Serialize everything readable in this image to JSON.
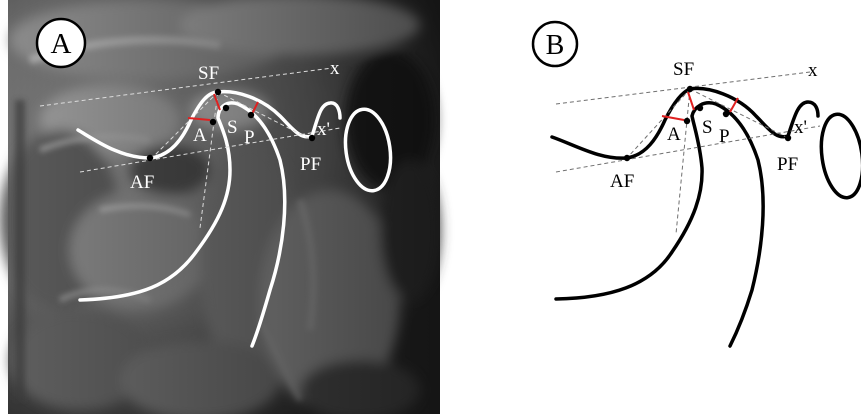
{
  "panels": [
    {
      "id": "A",
      "panel_label": "A",
      "points": {
        "SF": "SF",
        "AF": "AF",
        "PF": "PF",
        "A": "A",
        "S": "S",
        "P": "P",
        "x": "x",
        "x_prime": "x'"
      }
    },
    {
      "id": "B",
      "panel_label": "B",
      "points": {
        "SF": "SF",
        "AF": "AF",
        "PF": "PF",
        "A": "A",
        "S": "S",
        "P": "P",
        "x": "x",
        "x_prime": "x'"
      }
    }
  ],
  "colors": {
    "mri_background": "#6e6e6e",
    "outline_on_mri": "#ffffff",
    "outline_on_white": "#000000",
    "reference_line": "#9a9a9a",
    "joint_space_mark": "#e02020"
  }
}
